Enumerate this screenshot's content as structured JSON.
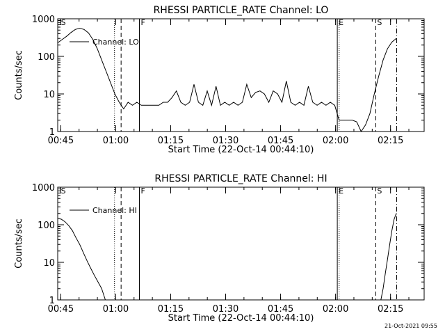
{
  "footer_date": "21-Oct-2021 09:55",
  "chart_data": [
    {
      "type": "line",
      "title": "RHESSI PARTICLE_RATE Channel: LO",
      "xlabel": "Start Time (22-Oct-14 00:44:10)",
      "ylabel": "Counts/sec",
      "yscale": "log",
      "ylim": [
        1,
        1000
      ],
      "xlim_min": [
        0,
        100
      ],
      "xticks": [
        {
          "v": 0.83,
          "label": "00:45"
        },
        {
          "v": 15.83,
          "label": "01:00"
        },
        {
          "v": 30.83,
          "label": "01:15"
        },
        {
          "v": 45.83,
          "label": "01:30"
        },
        {
          "v": 60.83,
          "label": "01:45"
        },
        {
          "v": 75.83,
          "label": "02:00"
        },
        {
          "v": 90.83,
          "label": "02:15"
        }
      ],
      "yticks": [
        {
          "v": 1,
          "label": "1"
        },
        {
          "v": 10,
          "label": "10"
        },
        {
          "v": 100,
          "label": "100"
        },
        {
          "v": 1000,
          "label": "1000"
        }
      ],
      "legend": {
        "label": "Channel: LO",
        "placement": "top-left"
      },
      "markers": [
        {
          "x": 0.5,
          "style": "none",
          "label": "S"
        },
        {
          "x": 15.5,
          "style": "dotted",
          "label": ""
        },
        {
          "x": 17.3,
          "style": "dashed",
          "label": ""
        },
        {
          "x": 22.3,
          "style": "solid",
          "label": "F"
        },
        {
          "x": 76.3,
          "style": "solid",
          "label": "E"
        },
        {
          "x": 76.8,
          "style": "dotted",
          "label": ""
        },
        {
          "x": 86.8,
          "style": "dashed",
          "label": "S"
        },
        {
          "x": 92.5,
          "style": "dashdot",
          "label": ""
        }
      ],
      "x": [
        0,
        1.2,
        2.4,
        3.6,
        4.8,
        6,
        7.2,
        8.4,
        9.6,
        10.8,
        12,
        13.2,
        14.4,
        15.6,
        16.8,
        18,
        19.2,
        20.4,
        21.6,
        22.8,
        24,
        25.2,
        26.4,
        27.6,
        28.8,
        30,
        31.2,
        32.4,
        33.6,
        34.8,
        36,
        37.2,
        38.4,
        39.6,
        40.8,
        42,
        43.2,
        44.4,
        45.6,
        46.8,
        48,
        49.2,
        50.4,
        51.6,
        52.8,
        54,
        55.2,
        56.4,
        57.6,
        58.8,
        60,
        61.2,
        62.4,
        63.6,
        64.8,
        66,
        67.2,
        68.4,
        69.6,
        70.8,
        72,
        73.2,
        74.4,
        75.6,
        76.8,
        78,
        79.2,
        80.4,
        81.6,
        82.8,
        84,
        85.2,
        86.4,
        87.6,
        88.8,
        90,
        91.2,
        92.4
      ],
      "values": [
        230,
        280,
        340,
        430,
        520,
        560,
        520,
        420,
        280,
        160,
        80,
        40,
        20,
        10,
        6,
        4,
        6,
        5,
        6,
        5,
        5,
        5,
        5,
        5,
        6,
        6,
        8,
        12,
        6,
        5,
        6,
        18,
        6,
        5,
        12,
        5,
        16,
        5,
        6,
        5,
        6,
        5,
        6,
        18,
        8,
        11,
        12,
        10,
        6,
        12,
        10,
        6,
        22,
        6,
        5,
        6,
        5,
        16,
        6,
        5,
        6,
        5,
        6,
        5,
        2,
        2,
        2,
        2,
        1.8,
        1,
        1.5,
        3,
        10,
        30,
        80,
        160,
        240,
        300
      ]
    },
    {
      "type": "line",
      "title": "RHESSI PARTICLE_RATE Channel: HI",
      "xlabel": "Start Time (22-Oct-14 00:44:10)",
      "ylabel": "Counts/sec",
      "yscale": "log",
      "ylim": [
        1,
        1000
      ],
      "xlim_min": [
        0,
        100
      ],
      "xticks": [
        {
          "v": 0.83,
          "label": "00:45"
        },
        {
          "v": 15.83,
          "label": "01:00"
        },
        {
          "v": 30.83,
          "label": "01:15"
        },
        {
          "v": 45.83,
          "label": "01:30"
        },
        {
          "v": 60.83,
          "label": "01:45"
        },
        {
          "v": 75.83,
          "label": "02:00"
        },
        {
          "v": 90.83,
          "label": "02:15"
        }
      ],
      "yticks": [
        {
          "v": 1,
          "label": "1"
        },
        {
          "v": 10,
          "label": "10"
        },
        {
          "v": 100,
          "label": "100"
        },
        {
          "v": 1000,
          "label": "1000"
        }
      ],
      "legend": {
        "label": "Channel: HI",
        "placement": "top-left"
      },
      "markers": [
        {
          "x": 0.5,
          "style": "none",
          "label": "S"
        },
        {
          "x": 15.5,
          "style": "dotted",
          "label": ""
        },
        {
          "x": 17.3,
          "style": "dashed",
          "label": ""
        },
        {
          "x": 22.3,
          "style": "solid",
          "label": "F"
        },
        {
          "x": 76.3,
          "style": "solid",
          "label": "E"
        },
        {
          "x": 76.8,
          "style": "dotted",
          "label": ""
        },
        {
          "x": 86.8,
          "style": "dashed",
          "label": "S"
        },
        {
          "x": 92.5,
          "style": "dashdot",
          "label": ""
        }
      ],
      "x": [
        0,
        1,
        2,
        3,
        4,
        5,
        6,
        7,
        8,
        9,
        10,
        11,
        12,
        13,
        88.2,
        88.8,
        89.4,
        90,
        90.6,
        91.2,
        91.8,
        92.4
      ],
      "values": [
        150,
        140,
        120,
        95,
        70,
        45,
        30,
        18,
        11,
        7,
        4.5,
        3,
        2,
        1,
        1,
        2,
        5,
        12,
        30,
        70,
        140,
        200
      ]
    }
  ]
}
